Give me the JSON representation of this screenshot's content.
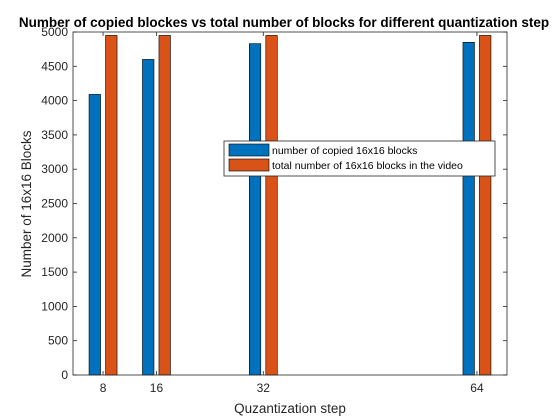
{
  "chart_data": {
    "type": "bar",
    "title": "Number of copied blockes vs total number of blocks for different quantization step",
    "xlabel": "Quzantization step",
    "ylabel": "Number of 16x16 Blocks",
    "x": [
      8,
      16,
      32,
      64
    ],
    "x_tick_labels": [
      "8",
      "16",
      "32",
      "64"
    ],
    "xlim": [
      3.5,
      68.5
    ],
    "ylim": [
      0,
      5000
    ],
    "y_ticks": [
      0,
      500,
      1000,
      1500,
      2000,
      2500,
      3000,
      3500,
      4000,
      4500,
      5000
    ],
    "series": [
      {
        "name": "number of copied 16x16 blocks",
        "color": "#0072bd",
        "values": [
          4090,
          4600,
          4830,
          4850
        ]
      },
      {
        "name": "total number of 16x16 blocks in the video",
        "color": "#d95319",
        "values": [
          4950,
          4950,
          4950,
          4950
        ]
      }
    ],
    "legend_position": "right-center",
    "grid": false
  }
}
